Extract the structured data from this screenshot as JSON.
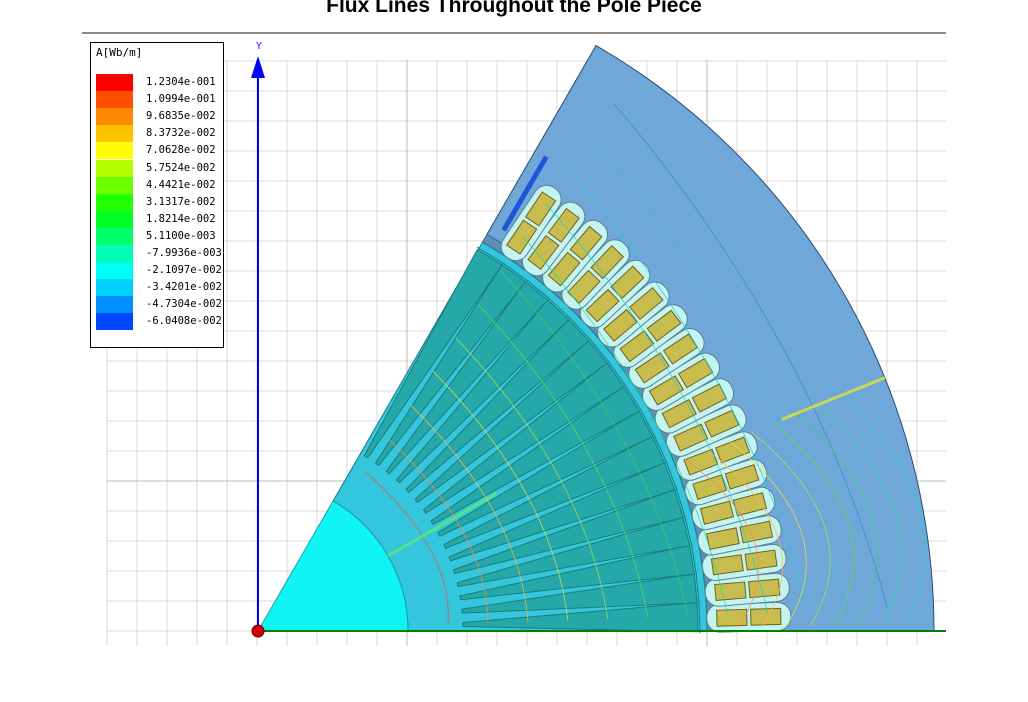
{
  "title": "Flux Lines Throughout the Pole Piece",
  "axis": {
    "y_label": "Y"
  },
  "legend": {
    "title": "A[Wb/m]",
    "entries": [
      {
        "label": "1.2304e-001",
        "color": "#ff0000"
      },
      {
        "label": "1.0994e-001",
        "color": "#ff5000"
      },
      {
        "label": "9.6835e-002",
        "color": "#ff8a00"
      },
      {
        "label": "8.3732e-002",
        "color": "#ffc200"
      },
      {
        "label": "7.0628e-002",
        "color": "#ffff00"
      },
      {
        "label": "5.7524e-002",
        "color": "#b7ff00"
      },
      {
        "label": "4.4421e-002",
        "color": "#6cff00"
      },
      {
        "label": "3.1317e-002",
        "color": "#22ff00"
      },
      {
        "label": "1.8214e-002",
        "color": "#00ff26"
      },
      {
        "label": "5.1100e-003",
        "color": "#00ff6c"
      },
      {
        "label": "-7.9936e-003",
        "color": "#00ffb5"
      },
      {
        "label": "-2.1097e-002",
        "color": "#00fff2"
      },
      {
        "label": "-3.4201e-002",
        "color": "#00d2ff"
      },
      {
        "label": "-4.7304e-002",
        "color": "#0090ff"
      },
      {
        "label": "-6.0408e-002",
        "color": "#0048ff"
      }
    ]
  },
  "colors": {
    "stator": "#6fa8d8",
    "rotor": "#34c6dc",
    "shaft": "#0ff5f5",
    "rotor_slot": "#27a8a8",
    "coil": "#c8bc4e",
    "slot_liner": "#c4f4f0",
    "x_axis": "#008000",
    "y_axis": "#0000ff",
    "grid": "#d8d8d8"
  }
}
